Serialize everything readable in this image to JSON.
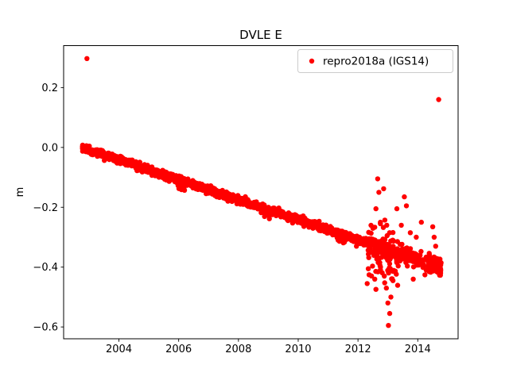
{
  "chart_data": {
    "type": "scatter",
    "title": "DVLE E",
    "xlabel": "",
    "ylabel": "m",
    "xlim": [
      2002.15,
      2015.35
    ],
    "ylim": [
      -0.64,
      0.34
    ],
    "grid": false,
    "xtick_values": [
      2004,
      2006,
      2008,
      2010,
      2012,
      2014
    ],
    "xtick_labels": [
      "2004",
      "2006",
      "2008",
      "2010",
      "2012",
      "2014"
    ],
    "ytick_values": [
      -0.6,
      -0.4,
      -0.2,
      0.0,
      0.2
    ],
    "ytick_labels": [
      "−0.6",
      "−0.4",
      "−0.2",
      "0.0",
      "0.2"
    ],
    "legend": {
      "position": "upper right",
      "entries": [
        {
          "label": "repro2018a (IGS14)",
          "color": "#ff0000",
          "marker": "circle"
        }
      ]
    },
    "series": [
      {
        "name": "repro2018a (IGS14)",
        "color": "#ff0000",
        "seed": 42,
        "trend": {
          "x_start": 2002.75,
          "y_start": 0.0,
          "slope_per_year": -0.0333,
          "x_end": 2014.78,
          "y_end": -0.4
        },
        "segments": [
          {
            "x_start": 2002.78,
            "x_end": 2002.96,
            "n": 70,
            "noise_sd": 0.005,
            "offset": 0
          },
          {
            "x_start": 2002.96,
            "x_end": 2012.3,
            "n": 1700,
            "noise_sd": 0.006,
            "offset": 0
          },
          {
            "x_start": 2005.95,
            "x_end": 2006.2,
            "n": 30,
            "noise_sd": 0.007,
            "offset": -0.018
          },
          {
            "x_start": 2008.85,
            "x_end": 2009.05,
            "n": 28,
            "noise_sd": 0.008,
            "offset": -0.014
          },
          {
            "x_start": 2011.3,
            "x_end": 2011.6,
            "n": 40,
            "noise_sd": 0.011,
            "offset": -0.01
          },
          {
            "x_start": 2012.3,
            "x_end": 2013.35,
            "n": 90,
            "noise_sd": 0.013,
            "offset": 0
          },
          {
            "x_start": 2012.3,
            "x_end": 2013.35,
            "n": 80,
            "noise_sd": 0.055,
            "offset": -0.02
          },
          {
            "x_start": 2013.35,
            "x_end": 2014.05,
            "n": 130,
            "noise_sd": 0.012,
            "offset": 0
          },
          {
            "x_start": 2014.05,
            "x_end": 2014.35,
            "n": 15,
            "noise_sd": 0.02,
            "offset": 0
          },
          {
            "x_start": 2014.35,
            "x_end": 2014.78,
            "n": 140,
            "noise_sd": 0.013,
            "offset": 0
          }
        ],
        "outliers": [
          [
            2002.93,
            0.297
          ],
          [
            2014.7,
            0.16
          ],
          [
            2011.95,
            -0.33
          ],
          [
            2012.05,
            -0.3
          ],
          [
            2012.5,
            -0.27
          ],
          [
            2012.6,
            -0.205
          ],
          [
            2012.66,
            -0.105
          ],
          [
            2012.7,
            -0.15
          ],
          [
            2012.75,
            -0.25
          ],
          [
            2012.86,
            -0.138
          ],
          [
            2012.88,
            -0.43
          ],
          [
            2012.95,
            -0.47
          ],
          [
            2013.0,
            -0.52
          ],
          [
            2013.02,
            -0.595
          ],
          [
            2013.06,
            -0.555
          ],
          [
            2013.1,
            -0.5
          ],
          [
            2013.17,
            -0.445
          ],
          [
            2013.3,
            -0.205
          ],
          [
            2013.45,
            -0.26
          ],
          [
            2013.55,
            -0.165
          ],
          [
            2013.62,
            -0.195
          ],
          [
            2013.75,
            -0.285
          ],
          [
            2013.85,
            -0.44
          ],
          [
            2013.95,
            -0.3
          ],
          [
            2014.12,
            -0.25
          ],
          [
            2014.5,
            -0.265
          ],
          [
            2014.55,
            -0.3
          ],
          [
            2014.6,
            -0.33
          ]
        ]
      }
    ]
  }
}
